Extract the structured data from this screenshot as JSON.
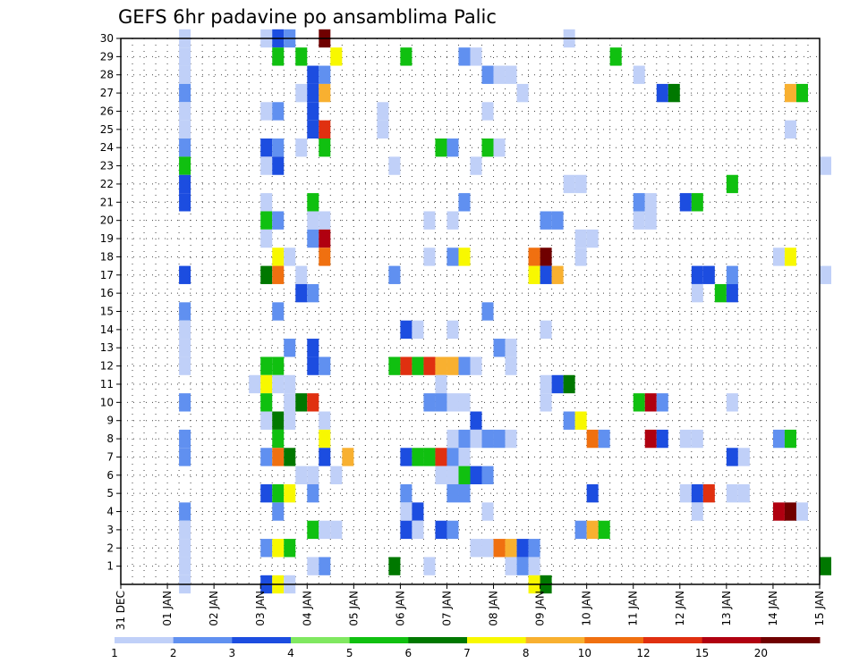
{
  "chart_data": {
    "type": "heatmap",
    "title": "GEFS 6hr padavine po ansamblima Palic",
    "xlabel": "",
    "ylabel": "",
    "x_tick_labels": [
      "31 DEC",
      "01 JAN",
      "02 JAN",
      "03 JAN",
      "04 JAN",
      "05 JAN",
      "06 JAN",
      "07 JAN",
      "08 JAN",
      "09 JAN",
      "10 JAN",
      "11 JAN",
      "12 JAN",
      "13 JAN",
      "14 JAN",
      "15 JAN"
    ],
    "y_tick_labels": [
      "1",
      "2",
      "3",
      "4",
      "5",
      "6",
      "7",
      "8",
      "9",
      "10",
      "11",
      "12",
      "13",
      "14",
      "15",
      "16",
      "17",
      "18",
      "19",
      "20",
      "21",
      "22",
      "23",
      "24",
      "25",
      "26",
      "27",
      "28",
      "29",
      "30"
    ],
    "x_range_days": [
      0,
      15
    ],
    "y_range_members": [
      0,
      30
    ],
    "time_step_hours": 6,
    "grid": true,
    "legend_position": "bottom",
    "colorbar_labels": [
      "1",
      "2",
      "3",
      "4",
      "5",
      "6",
      "7",
      "8",
      "10",
      "12",
      "15",
      "20"
    ],
    "colorbar_colors": [
      "#c0d0f8",
      "#6090f0",
      "#1c4de0",
      "#80e860",
      "#10c010",
      "#007800",
      "#f8f800",
      "#f8b030",
      "#f07010",
      "#e03010",
      "#b00010",
      "#700000"
    ],
    "data": [
      [
        1.25,
        30,
        1
      ],
      [
        1.25,
        29,
        1
      ],
      [
        1.25,
        28,
        1
      ],
      [
        1.25,
        27,
        2
      ],
      [
        1.25,
        26,
        1
      ],
      [
        1.25,
        25,
        1
      ],
      [
        1.25,
        24,
        2
      ],
      [
        1.25,
        23,
        5
      ],
      [
        1.25,
        22,
        3
      ],
      [
        1.25,
        21,
        3
      ],
      [
        1.25,
        17,
        3
      ],
      [
        1.25,
        15,
        2
      ],
      [
        1.25,
        14,
        1
      ],
      [
        1.25,
        13,
        1
      ],
      [
        1.25,
        12,
        1
      ],
      [
        1.25,
        10,
        2
      ],
      [
        1.25,
        8,
        2
      ],
      [
        1.25,
        7,
        2
      ],
      [
        1.25,
        4,
        2
      ],
      [
        1.25,
        3,
        1
      ],
      [
        1.25,
        2,
        1
      ],
      [
        1.25,
        1,
        1
      ],
      [
        1.25,
        0,
        1
      ],
      [
        3.0,
        30,
        1
      ],
      [
        3.25,
        30,
        3
      ],
      [
        3.5,
        30,
        2
      ],
      [
        4.25,
        30,
        20
      ],
      [
        9.5,
        30,
        1
      ],
      [
        3.25,
        29,
        5
      ],
      [
        3.75,
        29,
        5
      ],
      [
        4.5,
        29,
        7
      ],
      [
        6.0,
        29,
        5
      ],
      [
        7.25,
        29,
        2
      ],
      [
        7.5,
        29,
        1
      ],
      [
        10.5,
        29,
        5
      ],
      [
        4.0,
        28,
        3
      ],
      [
        4.25,
        28,
        2
      ],
      [
        7.75,
        28,
        2
      ],
      [
        8.0,
        28,
        1
      ],
      [
        8.25,
        28,
        1
      ],
      [
        11.0,
        28,
        1
      ],
      [
        3.75,
        27,
        1
      ],
      [
        4.0,
        27,
        3
      ],
      [
        4.25,
        27,
        8
      ],
      [
        8.5,
        27,
        1
      ],
      [
        11.5,
        27,
        3
      ],
      [
        11.75,
        27,
        6
      ],
      [
        14.25,
        27,
        8
      ],
      [
        14.5,
        27,
        5
      ],
      [
        3.0,
        26,
        1
      ],
      [
        3.25,
        26,
        2
      ],
      [
        4.0,
        26,
        3
      ],
      [
        5.5,
        26,
        1
      ],
      [
        7.75,
        26,
        1
      ],
      [
        4.0,
        25,
        3
      ],
      [
        4.25,
        25,
        12
      ],
      [
        5.5,
        25,
        1
      ],
      [
        14.25,
        25,
        1
      ],
      [
        3.0,
        24,
        3
      ],
      [
        3.25,
        24,
        2
      ],
      [
        3.75,
        24,
        1
      ],
      [
        4.25,
        24,
        5
      ],
      [
        6.75,
        24,
        5
      ],
      [
        7.0,
        24,
        2
      ],
      [
        7.75,
        24,
        5
      ],
      [
        8.0,
        24,
        1
      ],
      [
        3.0,
        23,
        1
      ],
      [
        3.25,
        23,
        3
      ],
      [
        5.75,
        23,
        1
      ],
      [
        7.5,
        23,
        1
      ],
      [
        15.0,
        23,
        1
      ],
      [
        9.5,
        22,
        1
      ],
      [
        9.75,
        22,
        1
      ],
      [
        13.0,
        22,
        5
      ],
      [
        3.0,
        21,
        1
      ],
      [
        4.0,
        21,
        5
      ],
      [
        7.25,
        21,
        2
      ],
      [
        11.0,
        21,
        2
      ],
      [
        11.25,
        21,
        1
      ],
      [
        12.0,
        21,
        3
      ],
      [
        12.25,
        21,
        5
      ],
      [
        3.0,
        20,
        5
      ],
      [
        3.25,
        20,
        2
      ],
      [
        4.0,
        20,
        1
      ],
      [
        4.25,
        20,
        1
      ],
      [
        6.5,
        20,
        1
      ],
      [
        7.0,
        20,
        1
      ],
      [
        9.0,
        20,
        2
      ],
      [
        9.25,
        20,
        2
      ],
      [
        11.0,
        20,
        1
      ],
      [
        11.25,
        20,
        1
      ],
      [
        3.0,
        19,
        1
      ],
      [
        4.0,
        19,
        2
      ],
      [
        4.25,
        19,
        15
      ],
      [
        9.75,
        19,
        1
      ],
      [
        10.0,
        19,
        1
      ],
      [
        3.25,
        18,
        7
      ],
      [
        3.5,
        18,
        1
      ],
      [
        4.25,
        18,
        10
      ],
      [
        6.5,
        18,
        1
      ],
      [
        7.0,
        18,
        2
      ],
      [
        7.25,
        18,
        7
      ],
      [
        8.75,
        18,
        10
      ],
      [
        9.0,
        18,
        20
      ],
      [
        9.75,
        18,
        1
      ],
      [
        14.0,
        18,
        1
      ],
      [
        14.25,
        18,
        7
      ],
      [
        3.0,
        17,
        6
      ],
      [
        3.25,
        17,
        10
      ],
      [
        3.75,
        17,
        1
      ],
      [
        5.75,
        17,
        2
      ],
      [
        8.75,
        17,
        7
      ],
      [
        9.0,
        17,
        3
      ],
      [
        9.25,
        17,
        8
      ],
      [
        12.25,
        17,
        3
      ],
      [
        12.5,
        17,
        3
      ],
      [
        13.0,
        17,
        2
      ],
      [
        15.0,
        17,
        1
      ],
      [
        3.75,
        16,
        3
      ],
      [
        4.0,
        16,
        2
      ],
      [
        12.25,
        16,
        1
      ],
      [
        12.75,
        16,
        5
      ],
      [
        13.0,
        16,
        3
      ],
      [
        3.25,
        15,
        2
      ],
      [
        7.75,
        15,
        2
      ],
      [
        6.0,
        14,
        3
      ],
      [
        6.25,
        14,
        1
      ],
      [
        7.0,
        14,
        1
      ],
      [
        9.0,
        14,
        1
      ],
      [
        3.5,
        13,
        2
      ],
      [
        4.0,
        13,
        3
      ],
      [
        8.0,
        13,
        2
      ],
      [
        8.25,
        13,
        1
      ],
      [
        3.0,
        12,
        5
      ],
      [
        3.25,
        12,
        5
      ],
      [
        4.0,
        12,
        3
      ],
      [
        4.25,
        12,
        2
      ],
      [
        5.75,
        12,
        5
      ],
      [
        6.0,
        12,
        12
      ],
      [
        6.25,
        12,
        5
      ],
      [
        6.5,
        12,
        12
      ],
      [
        6.75,
        12,
        8
      ],
      [
        7.0,
        12,
        8
      ],
      [
        7.25,
        12,
        2
      ],
      [
        7.5,
        12,
        1
      ],
      [
        8.25,
        12,
        1
      ],
      [
        2.75,
        11,
        1
      ],
      [
        3.0,
        11,
        7
      ],
      [
        3.25,
        11,
        1
      ],
      [
        3.5,
        11,
        1
      ],
      [
        6.75,
        11,
        1
      ],
      [
        9.0,
        11,
        1
      ],
      [
        9.25,
        11,
        3
      ],
      [
        9.5,
        11,
        6
      ],
      [
        3.0,
        10,
        5
      ],
      [
        3.5,
        10,
        1
      ],
      [
        3.75,
        10,
        6
      ],
      [
        4.0,
        10,
        12
      ],
      [
        6.5,
        10,
        2
      ],
      [
        6.75,
        10,
        2
      ],
      [
        7.0,
        10,
        1
      ],
      [
        7.25,
        10,
        1
      ],
      [
        9.0,
        10,
        1
      ],
      [
        11.0,
        10,
        5
      ],
      [
        11.25,
        10,
        15
      ],
      [
        11.5,
        10,
        2
      ],
      [
        13.0,
        10,
        1
      ],
      [
        3.0,
        9,
        1
      ],
      [
        3.25,
        9,
        6
      ],
      [
        3.5,
        9,
        1
      ],
      [
        4.25,
        9,
        1
      ],
      [
        7.5,
        9,
        3
      ],
      [
        9.5,
        9,
        2
      ],
      [
        9.75,
        9,
        7
      ],
      [
        3.25,
        8,
        5
      ],
      [
        4.25,
        8,
        7
      ],
      [
        7.0,
        8,
        1
      ],
      [
        7.25,
        8,
        2
      ],
      [
        7.5,
        8,
        1
      ],
      [
        7.75,
        8,
        2
      ],
      [
        8.0,
        8,
        2
      ],
      [
        8.25,
        8,
        1
      ],
      [
        10.0,
        8,
        10
      ],
      [
        10.25,
        8,
        2
      ],
      [
        11.25,
        8,
        15
      ],
      [
        11.5,
        8,
        3
      ],
      [
        12.0,
        8,
        1
      ],
      [
        12.25,
        8,
        1
      ],
      [
        14.0,
        8,
        2
      ],
      [
        14.25,
        8,
        5
      ],
      [
        3.0,
        7,
        2
      ],
      [
        3.25,
        7,
        10
      ],
      [
        3.5,
        7,
        6
      ],
      [
        4.25,
        7,
        3
      ],
      [
        4.75,
        7,
        8
      ],
      [
        6.0,
        7,
        3
      ],
      [
        6.25,
        7,
        5
      ],
      [
        6.5,
        7,
        5
      ],
      [
        6.75,
        7,
        12
      ],
      [
        7.0,
        7,
        2
      ],
      [
        7.25,
        7,
        1
      ],
      [
        13.0,
        7,
        3
      ],
      [
        13.25,
        7,
        1
      ],
      [
        3.75,
        6,
        1
      ],
      [
        4.0,
        6,
        1
      ],
      [
        4.5,
        6,
        1
      ],
      [
        6.75,
        6,
        1
      ],
      [
        7.0,
        6,
        1
      ],
      [
        7.25,
        6,
        5
      ],
      [
        7.5,
        6,
        3
      ],
      [
        7.75,
        6,
        2
      ],
      [
        3.0,
        5,
        3
      ],
      [
        3.25,
        5,
        5
      ],
      [
        3.5,
        5,
        7
      ],
      [
        4.0,
        5,
        2
      ],
      [
        6.0,
        5,
        2
      ],
      [
        7.0,
        5,
        2
      ],
      [
        7.25,
        5,
        2
      ],
      [
        10.0,
        5,
        3
      ],
      [
        12.0,
        5,
        1
      ],
      [
        12.25,
        5,
        3
      ],
      [
        12.5,
        5,
        12
      ],
      [
        13.0,
        5,
        1
      ],
      [
        13.25,
        5,
        1
      ],
      [
        3.25,
        4,
        2
      ],
      [
        6.0,
        4,
        1
      ],
      [
        6.25,
        4,
        3
      ],
      [
        7.75,
        4,
        1
      ],
      [
        12.25,
        4,
        1
      ],
      [
        14.0,
        4,
        15
      ],
      [
        14.25,
        4,
        20
      ],
      [
        14.5,
        4,
        1
      ],
      [
        4.0,
        3,
        5
      ],
      [
        4.25,
        3,
        1
      ],
      [
        4.5,
        3,
        1
      ],
      [
        6.0,
        3,
        3
      ],
      [
        6.25,
        3,
        1
      ],
      [
        6.75,
        3,
        3
      ],
      [
        7.0,
        3,
        2
      ],
      [
        9.75,
        3,
        2
      ],
      [
        10.0,
        3,
        8
      ],
      [
        10.25,
        3,
        5
      ],
      [
        3.0,
        2,
        2
      ],
      [
        3.25,
        2,
        7
      ],
      [
        3.5,
        2,
        5
      ],
      [
        7.5,
        2,
        1
      ],
      [
        7.75,
        2,
        1
      ],
      [
        8.0,
        2,
        10
      ],
      [
        8.25,
        2,
        8
      ],
      [
        8.5,
        2,
        3
      ],
      [
        8.75,
        2,
        2
      ],
      [
        4.0,
        1,
        1
      ],
      [
        4.25,
        1,
        2
      ],
      [
        5.75,
        1,
        6
      ],
      [
        6.5,
        1,
        1
      ],
      [
        8.25,
        1,
        1
      ],
      [
        8.5,
        1,
        2
      ],
      [
        8.75,
        1,
        1
      ],
      [
        15.0,
        1,
        6
      ],
      [
        3.0,
        0,
        3
      ],
      [
        3.25,
        0,
        7
      ],
      [
        3.5,
        0,
        1
      ],
      [
        8.75,
        0,
        7
      ],
      [
        9.0,
        0,
        6
      ]
    ]
  }
}
